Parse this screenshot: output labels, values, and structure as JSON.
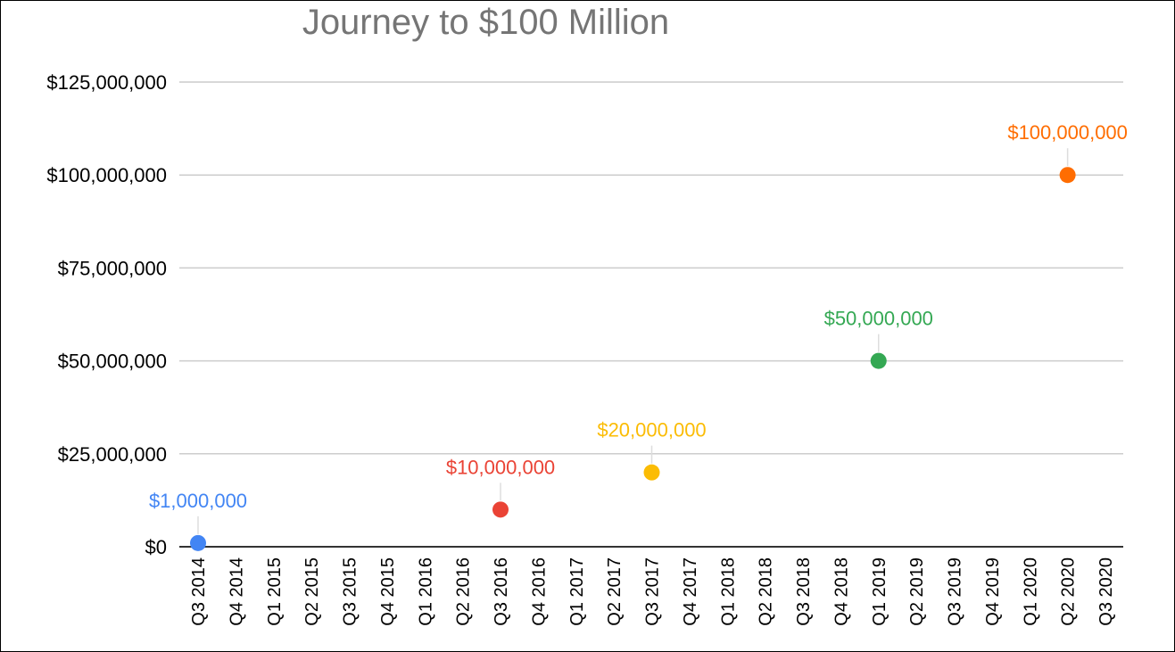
{
  "chart_data": {
    "type": "scatter",
    "title": "Journey to $100 Million",
    "xlabel": "",
    "ylabel": "",
    "ylim": [
      0,
      125000000
    ],
    "y_ticks": [
      "$0",
      "$25,000,000",
      "$50,000,000",
      "$75,000,000",
      "$100,000,000",
      "$125,000,000"
    ],
    "y_tick_values": [
      0,
      25000000,
      50000000,
      75000000,
      100000000,
      125000000
    ],
    "categories": [
      "Q3 2014",
      "Q4 2014",
      "Q1 2015",
      "Q2 2015",
      "Q3 2015",
      "Q4 2015",
      "Q1 2016",
      "Q2 2016",
      "Q3 2016",
      "Q4 2016",
      "Q1 2017",
      "Q2 2017",
      "Q3 2017",
      "Q4 2017",
      "Q1 2018",
      "Q2 2018",
      "Q3 2018",
      "Q4 2018",
      "Q1 2019",
      "Q2 2019",
      "Q3 2019",
      "Q4 2019",
      "Q1 2020",
      "Q2 2020",
      "Q3 2020"
    ],
    "points": [
      {
        "x": "Q3 2014",
        "y": 1000000,
        "label": "$1,000,000",
        "color": "#4285f4"
      },
      {
        "x": "Q3 2016",
        "y": 10000000,
        "label": "$10,000,000",
        "color": "#ea4335"
      },
      {
        "x": "Q3 2017",
        "y": 20000000,
        "label": "$20,000,000",
        "color": "#fbbc04"
      },
      {
        "x": "Q1 2019",
        "y": 50000000,
        "label": "$50,000,000",
        "color": "#34a853"
      },
      {
        "x": "Q2 2020",
        "y": 100000000,
        "label": "$100,000,000",
        "color": "#ff6d01"
      }
    ],
    "grid": true,
    "legend": "none",
    "colors": {
      "grid": "#cccccc",
      "axis": "#333333",
      "title": "#757575"
    }
  }
}
